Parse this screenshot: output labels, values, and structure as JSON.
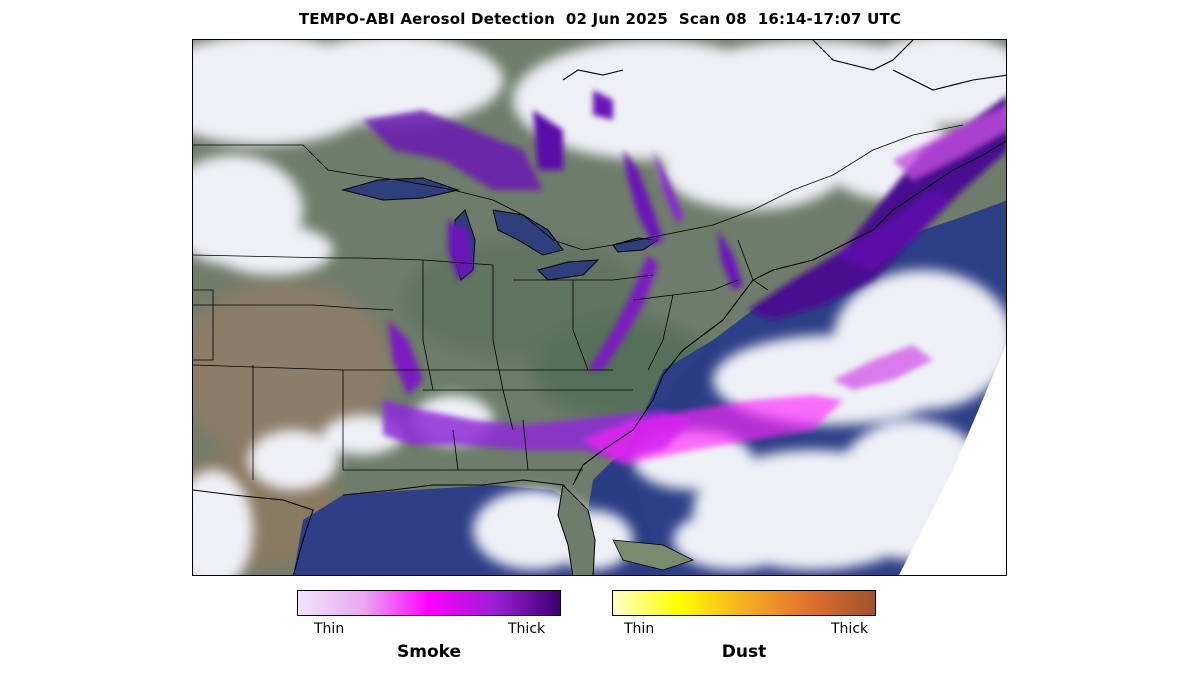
{
  "title": "TEMPO-ABI Aerosol Detection  02 Jun 2025  Scan 08  16:14-17:07 UTC",
  "map": {
    "description_layers": [
      "satellite-true-color",
      "state-borders",
      "coastlines",
      "smoke-overlay",
      "dust-overlay"
    ]
  },
  "legend": {
    "smoke": {
      "title": "Smoke",
      "low_label": "Thin",
      "high_label": "Thick",
      "colors": [
        "#f1e4fb",
        "#e9a9f0",
        "#ff00ff",
        "#9b1fd6",
        "#3c006f"
      ]
    },
    "dust": {
      "title": "Dust",
      "low_label": "Thin",
      "high_label": "Thick",
      "colors": [
        "#ffffc8",
        "#ffff00",
        "#f5b020",
        "#e07030",
        "#a0522d"
      ]
    }
  },
  "colors": {
    "land": "#6e7f6e",
    "ocean": "#2a3b80",
    "cloud": "#eef0f6",
    "border": "#000000"
  }
}
